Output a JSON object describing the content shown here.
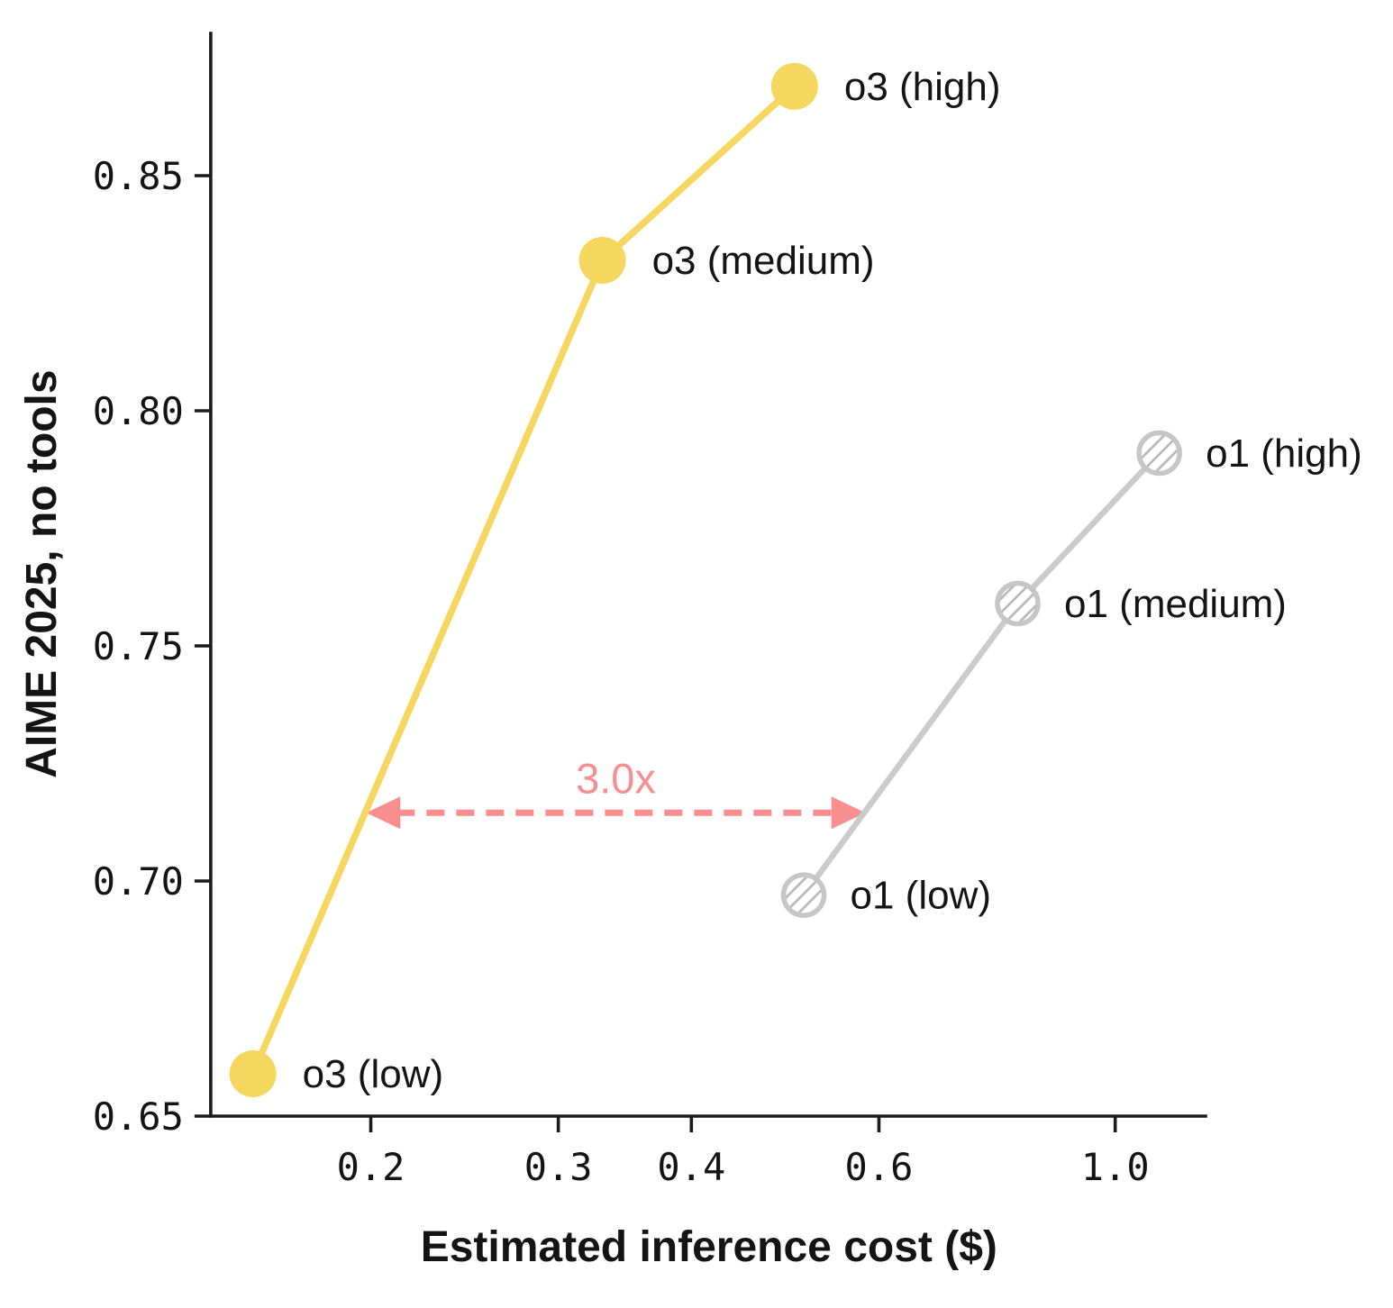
{
  "page": {
    "background": "#ffffff",
    "text_color": "#141414",
    "axis_color": "#1a1a1a"
  },
  "chart_data": {
    "type": "line",
    "title": "",
    "xlabel": "Estimated inference cost ($)",
    "ylabel": "AIME 2025, no tools",
    "x_scale": "log",
    "y_scale": "linear",
    "xlim": [
      0.1415,
      1.22
    ],
    "ylim": [
      0.65,
      0.8806
    ],
    "grid": false,
    "legend_position": "none",
    "x_ticks": [
      {
        "value": 0.2,
        "label": "0.2"
      },
      {
        "value": 0.3,
        "label": "0.3"
      },
      {
        "value": 0.4,
        "label": "0.4"
      },
      {
        "value": 0.6,
        "label": "0.6"
      },
      {
        "value": 1.0,
        "label": "1.0"
      }
    ],
    "y_ticks": [
      {
        "value": 0.65,
        "label": "0.65"
      },
      {
        "value": 0.7,
        "label": "0.70"
      },
      {
        "value": 0.75,
        "label": "0.75"
      },
      {
        "value": 0.8,
        "label": "0.80"
      },
      {
        "value": 0.85,
        "label": "0.85"
      }
    ],
    "series": [
      {
        "name": "o3",
        "color": "#F5D65F",
        "line_width": 7.5,
        "marker_style": "solid-circle",
        "marker_radius": 26,
        "points": [
          {
            "label": "o3 (low)",
            "x": 0.155,
            "y": 0.659
          },
          {
            "label": "o3 (medium)",
            "x": 0.33,
            "y": 0.832
          },
          {
            "label": "o3 (high)",
            "x": 0.5,
            "y": 0.869
          }
        ]
      },
      {
        "name": "o1",
        "color": "#CBCBCB",
        "ring_color": "#C6C6C6",
        "hatch_color": "#B9B9B9",
        "line_width": 6.5,
        "marker_style": "hatched-circle",
        "marker_radius": 22.5,
        "points": [
          {
            "label": "o1 (low)",
            "x": 0.51,
            "y": 0.697
          },
          {
            "label": "o1 (medium)",
            "x": 0.81,
            "y": 0.759
          },
          {
            "label": "o1 (high)",
            "x": 1.1,
            "y": 0.791
          }
        ]
      }
    ],
    "annotation": {
      "label": "3.0x",
      "color": "#F98E8E",
      "style": "dashed-double-arrow",
      "y": 0.7145,
      "x_from": 0.198,
      "x_to": 0.583
    }
  }
}
